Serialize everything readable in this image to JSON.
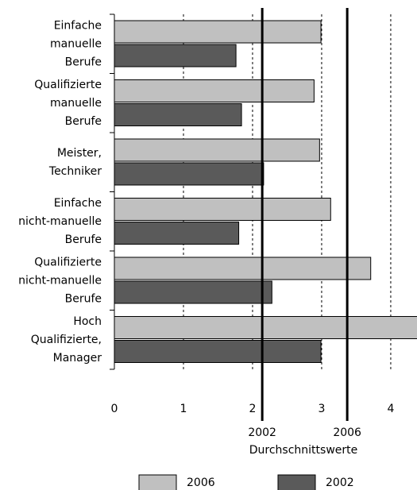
{
  "chart_data": {
    "type": "bar",
    "orientation": "horizontal",
    "categories": [
      [
        "Einfache",
        "manuelle",
        "Berufe"
      ],
      [
        "Qualifizierte",
        "manuelle",
        "Berufe"
      ],
      [
        "Meister,",
        "Techniker"
      ],
      [
        "Einfache",
        "nicht-manuelle",
        "Berufe"
      ],
      [
        "Qualifizierte",
        "nicht-manuelle",
        "Berufe"
      ],
      [
        "Hoch",
        "Qualifizierte,",
        "Manager"
      ]
    ],
    "series": [
      {
        "name": "2006",
        "color": "#c0c0c0",
        "values": [
          2.99,
          2.89,
          2.97,
          3.13,
          3.71,
          4.4
        ]
      },
      {
        "name": "2002",
        "color": "#5a5a5a",
        "values": [
          1.76,
          1.84,
          2.16,
          1.8,
          2.28,
          2.99
        ]
      }
    ],
    "xlim": [
      0,
      4.38
    ],
    "xticks": [
      0,
      1,
      2,
      3,
      4
    ],
    "grid": true,
    "reference_lines": [
      {
        "value": 2.14,
        "label": "2002"
      },
      {
        "value": 3.37,
        "label": "2006"
      }
    ],
    "xlabel": "Durchschnittswerte",
    "legend": "bottom"
  }
}
